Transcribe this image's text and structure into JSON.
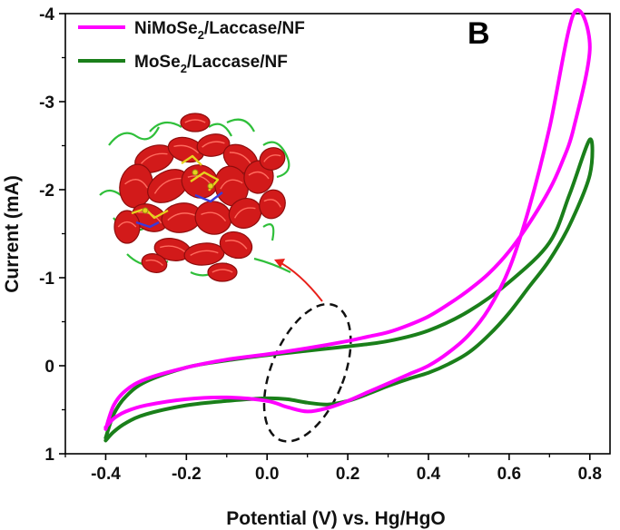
{
  "chart_data": {
    "type": "line",
    "panel_label": "B",
    "xlabel": "Potential (V) vs. Hg/HgO",
    "ylabel": "Current (mA)",
    "xlim": [
      -0.5,
      0.85
    ],
    "ylim": [
      1,
      -4
    ],
    "y_axis_inverted": true,
    "x_ticks": [
      "-0.4",
      "-0.2",
      "0.0",
      "0.2",
      "0.4",
      "0.6",
      "0.8"
    ],
    "x_tick_values": [
      -0.4,
      -0.2,
      0.0,
      0.2,
      0.4,
      0.6,
      0.8
    ],
    "y_ticks": [
      "-4",
      "-3",
      "-2",
      "-1",
      "0",
      "1"
    ],
    "y_tick_values": [
      -4,
      -3,
      -2,
      -1,
      0,
      1
    ],
    "legend_position": "top-left",
    "series": [
      {
        "name": "NiMoSe2/Laccase/NF",
        "legend_main": "NiMoSe",
        "legend_sub": "2",
        "legend_rest": "/Laccase/NF",
        "color": "#ff00ff",
        "x": [
          -0.4,
          -0.38,
          -0.35,
          -0.3,
          -0.2,
          -0.1,
          0.0,
          0.1,
          0.2,
          0.25,
          0.3,
          0.35,
          0.4,
          0.45,
          0.5,
          0.55,
          0.6,
          0.65,
          0.7,
          0.73,
          0.76,
          0.8,
          0.76,
          0.7,
          0.65,
          0.6,
          0.55,
          0.5,
          0.45,
          0.4,
          0.35,
          0.3,
          0.25,
          0.2,
          0.15,
          0.1,
          0.05,
          0.0,
          -0.1,
          -0.2,
          -0.3,
          -0.35,
          -0.38,
          -0.4
        ],
        "y": [
          0.72,
          0.45,
          0.28,
          0.15,
          0.02,
          -0.07,
          -0.13,
          -0.2,
          -0.28,
          -0.33,
          -0.38,
          -0.46,
          -0.56,
          -0.7,
          -0.86,
          -1.05,
          -1.3,
          -1.62,
          -2.0,
          -2.3,
          -2.7,
          -3.62,
          -4.0,
          -2.7,
          -1.8,
          -1.1,
          -0.65,
          -0.35,
          -0.15,
          0.0,
          0.1,
          0.2,
          0.3,
          0.4,
          0.48,
          0.52,
          0.47,
          0.4,
          0.36,
          0.38,
          0.45,
          0.52,
          0.6,
          0.7
        ]
      },
      {
        "name": "MoSe2/Laccase/NF",
        "legend_main": "MoSe",
        "legend_sub": "2",
        "legend_rest": "/Laccase/NF",
        "color": "#1a7f1a",
        "x": [
          -0.4,
          -0.38,
          -0.35,
          -0.3,
          -0.2,
          -0.1,
          0.0,
          0.1,
          0.2,
          0.3,
          0.4,
          0.5,
          0.6,
          0.7,
          0.75,
          0.8,
          0.8,
          0.75,
          0.7,
          0.65,
          0.6,
          0.55,
          0.5,
          0.45,
          0.4,
          0.35,
          0.3,
          0.25,
          0.2,
          0.15,
          0.1,
          0.05,
          0.0,
          -0.1,
          -0.2,
          -0.3,
          -0.35,
          -0.38,
          -0.4
        ],
        "y": [
          0.82,
          0.55,
          0.35,
          0.18,
          0.02,
          -0.06,
          -0.12,
          -0.17,
          -0.22,
          -0.28,
          -0.4,
          -0.62,
          -0.95,
          -1.4,
          -1.95,
          -2.57,
          -2.17,
          -1.6,
          -1.2,
          -0.9,
          -0.6,
          -0.35,
          -0.15,
          -0.02,
          0.08,
          0.15,
          0.23,
          0.32,
          0.4,
          0.44,
          0.42,
          0.38,
          0.37,
          0.4,
          0.45,
          0.55,
          0.65,
          0.75,
          0.85
        ]
      }
    ],
    "annotations": [
      {
        "type": "dashed-ellipse",
        "center_x": 0.1,
        "center_y": 0.08,
        "note": "highlighted redox peak region"
      },
      {
        "type": "arrow",
        "from": "ellipse",
        "to": "protein-structure-image"
      }
    ],
    "inset_image": "laccase-protein-structure"
  }
}
